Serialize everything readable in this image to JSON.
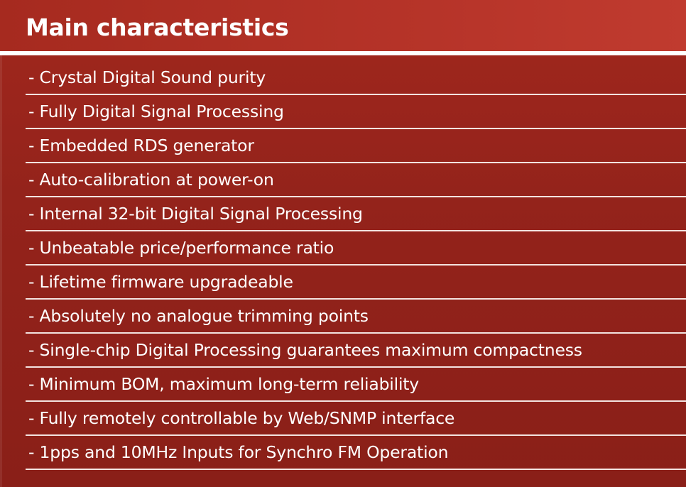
{
  "section": {
    "title": "Main characteristics",
    "items": [
      "- Crystal Digital Sound purity",
      "- Fully Digital Signal Processing",
      "- Embedded RDS generator",
      "- Auto-calibration at power-on",
      "- Internal 32-bit Digital Signal Processing",
      "- Unbeatable price/performance ratio",
      "- Lifetime firmware upgradeable",
      "- Absolutely no analogue trimming points",
      "- Single-chip Digital Processing guarantees maximum compactness",
      "- Minimum BOM, maximum long-term reliability",
      "- Fully remotely controllable by Web/SNMP interface",
      "- 1pps and 10MHz Inputs for Synchro FM Operation"
    ]
  },
  "colors": {
    "background": "#8e2019",
    "header": "#b8352a",
    "text": "#ffffff",
    "rule": "#f3e3e0"
  }
}
